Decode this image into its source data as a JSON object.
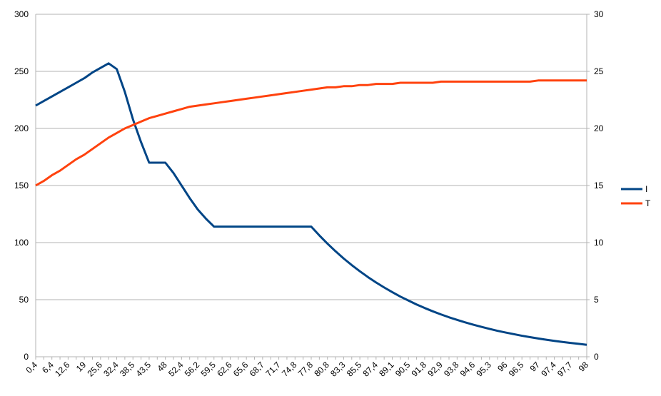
{
  "chart_data": {
    "type": "line",
    "categories": [
      "0,4",
      null,
      "6,4",
      null,
      "12,6",
      null,
      "19",
      null,
      "25,6",
      null,
      "32,4",
      null,
      "38,5",
      null,
      "43,5",
      null,
      "48",
      null,
      "52,4",
      null,
      "56,2",
      null,
      "59,5",
      null,
      "62,6",
      null,
      "65,6",
      null,
      "68,7",
      null,
      "71,7",
      null,
      "74,8",
      null,
      "77,8",
      null,
      "80,8",
      null,
      "83,3",
      null,
      "85,5",
      null,
      "87,4",
      null,
      "89,1",
      null,
      "90,5",
      null,
      "91,8",
      null,
      "92,9",
      null,
      "93,8",
      null,
      "94,6",
      null,
      "95,3",
      null,
      "96",
      null,
      "96,5",
      null,
      "97",
      null,
      "97,4",
      null,
      "97,7",
      null,
      "98"
    ],
    "series": [
      {
        "name": "I",
        "color": "#004586",
        "axis": "y",
        "values": [
          220,
          224,
          228,
          232,
          236,
          240,
          244,
          249,
          253,
          257,
          252,
          232,
          208,
          188,
          170,
          170,
          170,
          161,
          150,
          139,
          129,
          121,
          114,
          114,
          114,
          114,
          114,
          114,
          114,
          114,
          114,
          114,
          114,
          114,
          114,
          106.3,
          99.1,
          92.4,
          86.1,
          80.3,
          74.9,
          69.8,
          65.1,
          60.7,
          56.6,
          52.7,
          49.2,
          45.8,
          42.7,
          39.8,
          37.1,
          34.6,
          32.3,
          30.1,
          28.1,
          26.2,
          24.4,
          22.7,
          21.2,
          19.8,
          18.4,
          17.2,
          16.0,
          14.9,
          13.9,
          13.0,
          12.1,
          11.3,
          10.5
        ]
      },
      {
        "name": "T",
        "color": "#ff420e",
        "axis": "y2",
        "values": [
          15,
          15.4,
          15.9,
          16.3,
          16.8,
          17.3,
          17.7,
          18.2,
          18.7,
          19.2,
          19.6,
          20.0,
          20.3,
          20.6,
          20.9,
          21.1,
          21.3,
          21.5,
          21.7,
          21.9,
          22.0,
          22.1,
          22.2,
          22.3,
          22.4,
          22.5,
          22.6,
          22.7,
          22.8,
          22.9,
          23.0,
          23.1,
          23.2,
          23.3,
          23.4,
          23.5,
          23.6,
          23.6,
          23.7,
          23.7,
          23.8,
          23.8,
          23.9,
          23.9,
          23.9,
          24.0,
          24.0,
          24.0,
          24.0,
          24.0,
          24.1,
          24.1,
          24.1,
          24.1,
          24.1,
          24.1,
          24.1,
          24.1,
          24.1,
          24.1,
          24.1,
          24.1,
          24.2,
          24.2,
          24.2,
          24.2,
          24.2,
          24.2,
          24.2
        ]
      }
    ],
    "ylim": [
      0,
      300
    ],
    "yticks": [
      0,
      50,
      100,
      150,
      200,
      250,
      300
    ],
    "y2lim": [
      0,
      30
    ],
    "y2ticks": [
      0,
      5,
      10,
      15,
      20,
      25,
      30
    ],
    "grid": true,
    "legend": "right"
  }
}
